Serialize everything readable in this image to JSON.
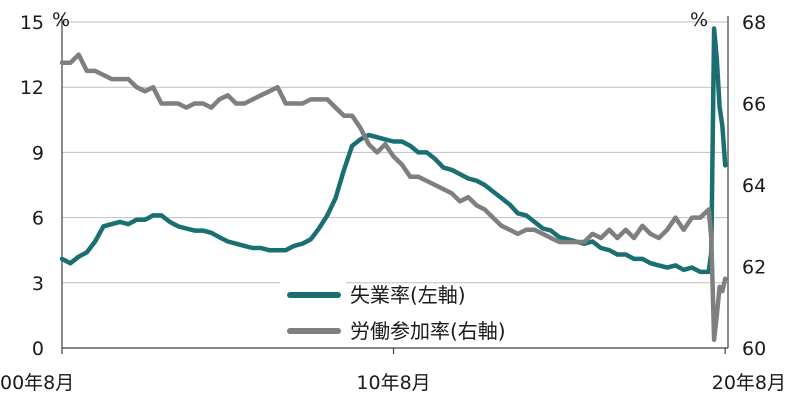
{
  "chart_data": {
    "type": "line",
    "x_labels": [
      "00年8月",
      "10年8月",
      "20年8月"
    ],
    "left_axis": {
      "unit": "%",
      "ticks": [
        0,
        3,
        6,
        9,
        12,
        15
      ],
      "ylim": [
        0,
        15
      ]
    },
    "right_axis": {
      "unit": "%",
      "ticks": [
        60,
        62,
        64,
        66,
        68
      ],
      "ylim": [
        60,
        68
      ]
    },
    "grid": true,
    "legend_position": "bottom-center",
    "series": [
      {
        "name": "失業率(左軸)",
        "axis": "left",
        "color": "#1a6f73",
        "points": [
          [
            "2000-08",
            4.1
          ],
          [
            "2000-11",
            3.9
          ],
          [
            "2001-02",
            4.2
          ],
          [
            "2001-05",
            4.4
          ],
          [
            "2001-08",
            4.9
          ],
          [
            "2001-11",
            5.6
          ],
          [
            "2002-02",
            5.7
          ],
          [
            "2002-05",
            5.8
          ],
          [
            "2002-08",
            5.7
          ],
          [
            "2002-11",
            5.9
          ],
          [
            "2003-02",
            5.9
          ],
          [
            "2003-05",
            6.1
          ],
          [
            "2003-08",
            6.1
          ],
          [
            "2003-11",
            5.8
          ],
          [
            "2004-02",
            5.6
          ],
          [
            "2004-05",
            5.5
          ],
          [
            "2004-08",
            5.4
          ],
          [
            "2004-11",
            5.4
          ],
          [
            "2005-02",
            5.3
          ],
          [
            "2005-05",
            5.1
          ],
          [
            "2005-08",
            4.9
          ],
          [
            "2005-11",
            4.8
          ],
          [
            "2006-02",
            4.7
          ],
          [
            "2006-05",
            4.6
          ],
          [
            "2006-08",
            4.6
          ],
          [
            "2006-11",
            4.5
          ],
          [
            "2007-02",
            4.5
          ],
          [
            "2007-05",
            4.5
          ],
          [
            "2007-08",
            4.7
          ],
          [
            "2007-11",
            4.8
          ],
          [
            "2008-02",
            5.0
          ],
          [
            "2008-05",
            5.5
          ],
          [
            "2008-08",
            6.1
          ],
          [
            "2008-11",
            6.9
          ],
          [
            "2009-02",
            8.2
          ],
          [
            "2009-05",
            9.3
          ],
          [
            "2009-08",
            9.6
          ],
          [
            "2009-11",
            9.8
          ],
          [
            "2010-02",
            9.7
          ],
          [
            "2010-05",
            9.6
          ],
          [
            "2010-08",
            9.5
          ],
          [
            "2010-11",
            9.5
          ],
          [
            "2011-02",
            9.3
          ],
          [
            "2011-05",
            9.0
          ],
          [
            "2011-08",
            9.0
          ],
          [
            "2011-11",
            8.7
          ],
          [
            "2012-02",
            8.3
          ],
          [
            "2012-05",
            8.2
          ],
          [
            "2012-08",
            8.0
          ],
          [
            "2012-11",
            7.8
          ],
          [
            "2013-02",
            7.7
          ],
          [
            "2013-05",
            7.5
          ],
          [
            "2013-08",
            7.2
          ],
          [
            "2013-11",
            6.9
          ],
          [
            "2014-02",
            6.6
          ],
          [
            "2014-05",
            6.2
          ],
          [
            "2014-08",
            6.1
          ],
          [
            "2014-11",
            5.8
          ],
          [
            "2015-02",
            5.5
          ],
          [
            "2015-05",
            5.4
          ],
          [
            "2015-08",
            5.1
          ],
          [
            "2015-11",
            5.0
          ],
          [
            "2016-02",
            4.9
          ],
          [
            "2016-05",
            4.8
          ],
          [
            "2016-08",
            4.9
          ],
          [
            "2016-11",
            4.6
          ],
          [
            "2017-02",
            4.5
          ],
          [
            "2017-05",
            4.3
          ],
          [
            "2017-08",
            4.3
          ],
          [
            "2017-11",
            4.1
          ],
          [
            "2018-02",
            4.1
          ],
          [
            "2018-05",
            3.9
          ],
          [
            "2018-08",
            3.8
          ],
          [
            "2018-11",
            3.7
          ],
          [
            "2019-02",
            3.8
          ],
          [
            "2019-05",
            3.6
          ],
          [
            "2019-08",
            3.7
          ],
          [
            "2019-11",
            3.5
          ],
          [
            "2020-02",
            3.5
          ],
          [
            "2020-03",
            4.4
          ],
          [
            "2020-04",
            14.7
          ],
          [
            "2020-05",
            13.3
          ],
          [
            "2020-06",
            11.1
          ],
          [
            "2020-07",
            10.2
          ],
          [
            "2020-08",
            8.4
          ]
        ]
      },
      {
        "name": "労働参加率(右軸)",
        "axis": "right",
        "color": "#7f7f7f",
        "points": [
          [
            "2000-08",
            67.0
          ],
          [
            "2000-11",
            67.0
          ],
          [
            "2001-02",
            67.2
          ],
          [
            "2001-05",
            66.8
          ],
          [
            "2001-08",
            66.8
          ],
          [
            "2001-11",
            66.7
          ],
          [
            "2002-02",
            66.6
          ],
          [
            "2002-05",
            66.6
          ],
          [
            "2002-08",
            66.6
          ],
          [
            "2002-11",
            66.4
          ],
          [
            "2003-02",
            66.3
          ],
          [
            "2003-05",
            66.4
          ],
          [
            "2003-08",
            66.0
          ],
          [
            "2003-11",
            66.0
          ],
          [
            "2004-02",
            66.0
          ],
          [
            "2004-05",
            65.9
          ],
          [
            "2004-08",
            66.0
          ],
          [
            "2004-11",
            66.0
          ],
          [
            "2005-02",
            65.9
          ],
          [
            "2005-05",
            66.1
          ],
          [
            "2005-08",
            66.2
          ],
          [
            "2005-11",
            66.0
          ],
          [
            "2006-02",
            66.0
          ],
          [
            "2006-05",
            66.1
          ],
          [
            "2006-08",
            66.2
          ],
          [
            "2006-11",
            66.3
          ],
          [
            "2007-02",
            66.4
          ],
          [
            "2007-05",
            66.0
          ],
          [
            "2007-08",
            66.0
          ],
          [
            "2007-11",
            66.0
          ],
          [
            "2008-02",
            66.1
          ],
          [
            "2008-05",
            66.1
          ],
          [
            "2008-08",
            66.1
          ],
          [
            "2008-11",
            65.9
          ],
          [
            "2009-02",
            65.7
          ],
          [
            "2009-05",
            65.7
          ],
          [
            "2009-08",
            65.4
          ],
          [
            "2009-11",
            65.0
          ],
          [
            "2010-02",
            64.8
          ],
          [
            "2010-05",
            65.0
          ],
          [
            "2010-08",
            64.7
          ],
          [
            "2010-11",
            64.5
          ],
          [
            "2011-02",
            64.2
          ],
          [
            "2011-05",
            64.2
          ],
          [
            "2011-08",
            64.1
          ],
          [
            "2011-11",
            64.0
          ],
          [
            "2012-02",
            63.9
          ],
          [
            "2012-05",
            63.8
          ],
          [
            "2012-08",
            63.6
          ],
          [
            "2012-11",
            63.7
          ],
          [
            "2013-02",
            63.5
          ],
          [
            "2013-05",
            63.4
          ],
          [
            "2013-08",
            63.2
          ],
          [
            "2013-11",
            63.0
          ],
          [
            "2014-02",
            62.9
          ],
          [
            "2014-05",
            62.8
          ],
          [
            "2014-08",
            62.9
          ],
          [
            "2014-11",
            62.9
          ],
          [
            "2015-02",
            62.8
          ],
          [
            "2015-05",
            62.7
          ],
          [
            "2015-08",
            62.6
          ],
          [
            "2015-11",
            62.6
          ],
          [
            "2016-02",
            62.6
          ],
          [
            "2016-05",
            62.6
          ],
          [
            "2016-08",
            62.8
          ],
          [
            "2016-11",
            62.7
          ],
          [
            "2017-02",
            62.9
          ],
          [
            "2017-05",
            62.7
          ],
          [
            "2017-08",
            62.9
          ],
          [
            "2017-11",
            62.7
          ],
          [
            "2018-02",
            63.0
          ],
          [
            "2018-05",
            62.8
          ],
          [
            "2018-08",
            62.7
          ],
          [
            "2018-11",
            62.9
          ],
          [
            "2019-02",
            63.2
          ],
          [
            "2019-05",
            62.9
          ],
          [
            "2019-08",
            63.2
          ],
          [
            "2019-11",
            63.2
          ],
          [
            "2020-02",
            63.4
          ],
          [
            "2020-03",
            62.7
          ],
          [
            "2020-04",
            60.2
          ],
          [
            "2020-05",
            60.8
          ],
          [
            "2020-06",
            61.5
          ],
          [
            "2020-07",
            61.4
          ],
          [
            "2020-08",
            61.7
          ]
        ]
      }
    ]
  }
}
